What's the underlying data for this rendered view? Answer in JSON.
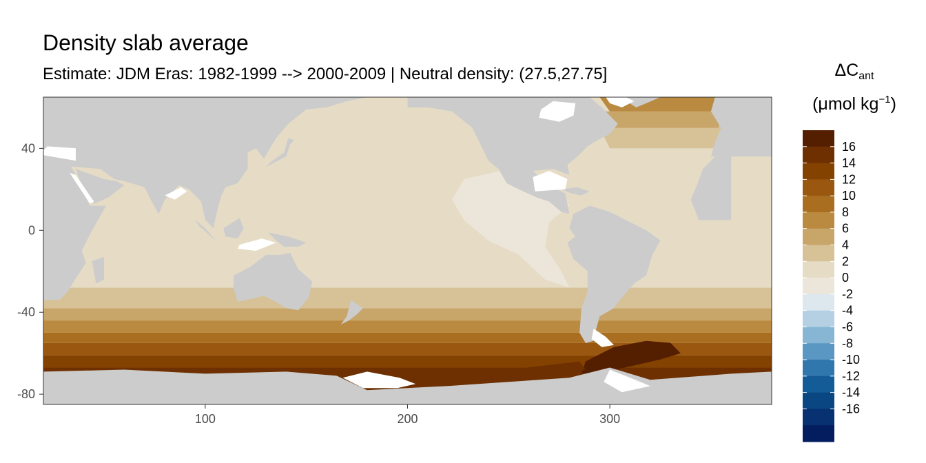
{
  "title": "Density slab average",
  "subtitle": "Estimate: JDM Eras: 1982-1999 --> 2000-2009 | Neutral density: (27.5,27.75]",
  "legend": {
    "title_symbol": "ΔC",
    "title_subscript": "ant",
    "unit_prefix": "(μmol kg",
    "unit_superscript": "−1",
    "unit_suffix": ")",
    "labels": [
      "16",
      "14",
      "12",
      "10",
      "8",
      "6",
      "4",
      "2",
      "0",
      "-2",
      "-4",
      "-6",
      "-8",
      "-10",
      "-12",
      "-14",
      "-16"
    ],
    "colors": [
      "#541e00",
      "#6e3000",
      "#844201",
      "#9a5710",
      "#a96e20",
      "#b98a3f",
      "#c8a568",
      "#d7c196",
      "#e6dcc6",
      "#ece6da",
      "#dce8ed",
      "#b5d0e2",
      "#86b6d4",
      "#5a97c2",
      "#2f77ad",
      "#135c98",
      "#0a4682",
      "#073170",
      "#041d5f"
    ]
  },
  "axes": {
    "x_ticks": [
      100,
      200,
      300
    ],
    "y_ticks": [
      40,
      0,
      -40,
      -80
    ],
    "x_range": [
      20,
      380
    ],
    "y_range": [
      -85,
      65
    ]
  },
  "map": {
    "land_color": "#cccccc",
    "missing_color": "#ffffff",
    "ocean_bands": [
      {
        "lat_min": -85,
        "lat_max": -67,
        "value": 14
      },
      {
        "lat_min": -67,
        "lat_max": -61,
        "value": 12
      },
      {
        "lat_min": -61,
        "lat_max": -55,
        "value": 10
      },
      {
        "lat_min": -55,
        "lat_max": -50,
        "value": 8
      },
      {
        "lat_min": -50,
        "lat_max": -44,
        "value": 6
      },
      {
        "lat_min": -44,
        "lat_max": -38,
        "value": 4
      },
      {
        "lat_min": -38,
        "lat_max": -28,
        "value": 2
      },
      {
        "lat_min": -28,
        "lat_max": 65,
        "value": 1
      }
    ],
    "north_atlantic_bands": [
      {
        "lat_min": 40,
        "lat_max": 50,
        "value": 2
      },
      {
        "lat_min": 50,
        "lat_max": 58,
        "value": 4
      },
      {
        "lat_min": 58,
        "lat_max": 65,
        "value": 6
      }
    ],
    "east_pacific_tropical_value": -1,
    "weddell_peak_value": 16
  }
}
